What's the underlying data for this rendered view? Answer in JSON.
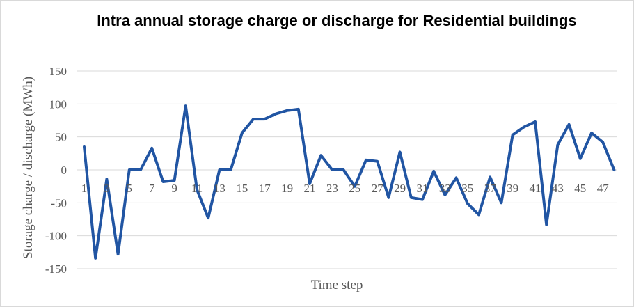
{
  "chart_data": {
    "type": "line",
    "title": "Intra annual storage charge or discharge for Residential buildings",
    "xlabel": "Time step",
    "ylabel": "Storage charge / discharge (MWh)",
    "ylim": [
      -150,
      150
    ],
    "yticks": [
      150,
      100,
      50,
      0,
      -50,
      -100,
      -150
    ],
    "ytick_labels": [
      "150",
      "100",
      "50",
      "0",
      "-50",
      "-100",
      "-150"
    ],
    "x": [
      1,
      2,
      3,
      4,
      5,
      6,
      7,
      8,
      9,
      10,
      11,
      12,
      13,
      14,
      15,
      16,
      17,
      18,
      19,
      20,
      21,
      22,
      23,
      24,
      25,
      26,
      27,
      28,
      29,
      30,
      31,
      32,
      33,
      34,
      35,
      36,
      37,
      38,
      39,
      40,
      41,
      42,
      43,
      44,
      45,
      46,
      47,
      48
    ],
    "xtick_labels": [
      "1",
      "3",
      "5",
      "7",
      "9",
      "11",
      "13",
      "15",
      "17",
      "19",
      "21",
      "23",
      "25",
      "27",
      "29",
      "31",
      "33",
      "35",
      "37",
      "39",
      "41",
      "43",
      "45",
      "47"
    ],
    "grid": true,
    "series": [
      {
        "color": "#2155a3",
        "values": [
          35,
          -134,
          -14,
          -128,
          0,
          0,
          33,
          -18,
          -16,
          97,
          -30,
          -73,
          0,
          0,
          56,
          77,
          77,
          85,
          90,
          92,
          -21,
          22,
          0,
          0,
          -25,
          15,
          13,
          -42,
          27,
          -42,
          -45,
          -2,
          -38,
          -12,
          -51,
          -68,
          -11,
          -50,
          53,
          65,
          73,
          -83,
          38,
          69,
          17,
          56,
          42,
          0
        ]
      }
    ]
  }
}
